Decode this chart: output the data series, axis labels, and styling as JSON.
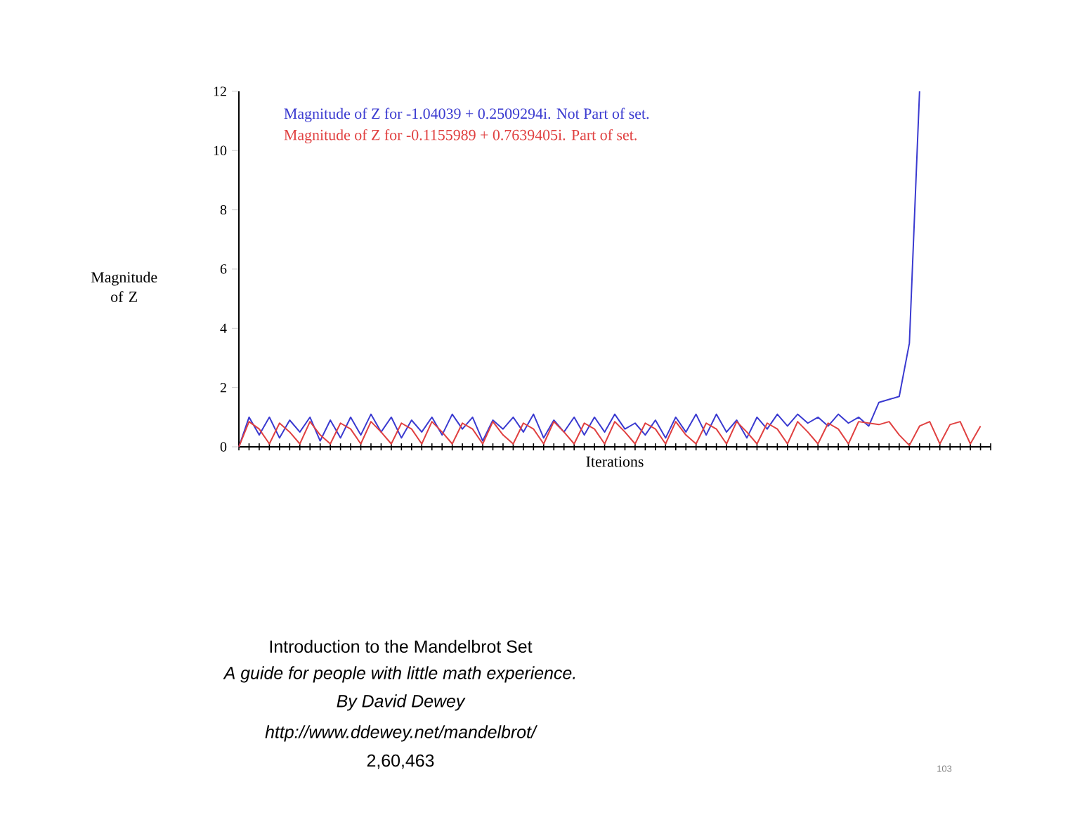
{
  "chart_data": {
    "type": "line",
    "xlabel": "Iterations",
    "ylabel": "Magnitude of Z",
    "categories": [
      null,
      null,
      null,
      null,
      null,
      null,
      null,
      null,
      null,
      null,
      null,
      null,
      null,
      null,
      null,
      null,
      null,
      null,
      null,
      null,
      null,
      null,
      null,
      null,
      null,
      null,
      null,
      null,
      null,
      null,
      null,
      null,
      null,
      null,
      null,
      null,
      null,
      null,
      null,
      null,
      null,
      null,
      null,
      null,
      null,
      null,
      null,
      null,
      null,
      null,
      null,
      null,
      null,
      null,
      null,
      null,
      null,
      null,
      null,
      null,
      null,
      null,
      null,
      null,
      null,
      null,
      null,
      null,
      null,
      null,
      null,
      null,
      null,
      null,
      null
    ],
    "series": [
      {
        "name": "Magnitude of Z for -1.04039 + 0.2509294i. Not Part of set.",
        "color": "#3a3ad0",
        "values": [
          0,
          1.0,
          0.4,
          1.0,
          0.3,
          0.9,
          0.5,
          1.0,
          0.2,
          0.9,
          0.3,
          1.0,
          0.4,
          1.1,
          0.5,
          1.0,
          0.3,
          0.9,
          0.5,
          1.0,
          0.4,
          1.1,
          0.6,
          1.0,
          0.2,
          0.9,
          0.6,
          1.0,
          0.5,
          1.1,
          0.3,
          0.9,
          0.5,
          1.0,
          0.4,
          1.0,
          0.5,
          1.1,
          0.6,
          0.8,
          0.4,
          0.9,
          0.3,
          1.0,
          0.5,
          1.1,
          0.4,
          1.1,
          0.5,
          0.9,
          0.3,
          1.0,
          0.6,
          1.1,
          0.7,
          1.1,
          0.8,
          1.0,
          0.7,
          1.1,
          0.8,
          1.0,
          0.7,
          1.5,
          1.6,
          1.7,
          3.5,
          12,
          null,
          null,
          null,
          null,
          null,
          null,
          null
        ]
      },
      {
        "name": "Magnitude of Z for -0.1155989 + 0.7639405i. Part of set.",
        "color": "#e04040",
        "values": [
          0,
          0.85,
          0.6,
          0.1,
          0.8,
          0.5,
          0.1,
          0.85,
          0.4,
          0.1,
          0.8,
          0.6,
          0.1,
          0.85,
          0.5,
          0.1,
          0.8,
          0.6,
          0.1,
          0.85,
          0.5,
          0.1,
          0.8,
          0.6,
          0.1,
          0.85,
          0.4,
          0.1,
          0.8,
          0.6,
          0.1,
          0.85,
          0.5,
          0.1,
          0.8,
          0.6,
          0.1,
          0.85,
          0.5,
          0.1,
          0.8,
          0.6,
          0.1,
          0.85,
          0.4,
          0.1,
          0.8,
          0.6,
          0.1,
          0.85,
          0.5,
          0.1,
          0.8,
          0.6,
          0.1,
          0.85,
          0.5,
          0.1,
          0.8,
          0.6,
          0.1,
          0.85,
          0.8,
          0.75,
          0.85,
          0.4,
          0.05,
          0.7,
          0.85,
          0.1,
          0.75,
          0.85,
          0.1,
          0.7,
          null
        ]
      }
    ],
    "ylim": [
      0,
      12
    ],
    "yticks": [
      0,
      2,
      4,
      6,
      8,
      10,
      12
    ],
    "tick_labels": "y",
    "legend": "top left",
    "marker": "none",
    "line_style": "solid",
    "grid": false,
    "annotations": [
      "Introduction to the Mandelbrot Set",
      "A guide for people with little math experience.",
      "By David Dewey",
      "http://www.ddewey.net/mandelbrot/",
      "2,60,463",
      "103"
    ]
  }
}
